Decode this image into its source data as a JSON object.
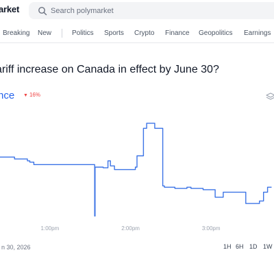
{
  "header": {
    "logo_text": "arket",
    "search": {
      "placeholder": "Search polymarket",
      "value": ""
    }
  },
  "nav": {
    "items": [
      "Breaking",
      "New",
      "Politics",
      "Sports",
      "Crypto",
      "Finance",
      "Geopolitics",
      "Earnings"
    ]
  },
  "market": {
    "title": "ariff increase on Canada in effect by June 30?",
    "outcome_label": "nce",
    "change_text": "16%",
    "change_color": "#ef4444",
    "accent_color": "#2563eb"
  },
  "chart_data": {
    "type": "line",
    "x_ticks": [
      "1:00pm",
      "2:00pm",
      "3:00pm"
    ],
    "ylim": [
      0,
      100
    ],
    "grid": false,
    "series": [
      {
        "color": "#3b73e6",
        "x": [
          12.38,
          12.45,
          12.53,
          12.56,
          12.61,
          12.66,
          12.7,
          12.72,
          12.75,
          12.8,
          12.85,
          12.9,
          12.95,
          13.0,
          13.1,
          13.2,
          13.3,
          13.4,
          13.5,
          13.55,
          13.555,
          13.56,
          13.58,
          13.6,
          13.63,
          13.66,
          13.7,
          13.72,
          13.75,
          13.8,
          13.85,
          13.9,
          13.95,
          14.0,
          14.02,
          14.04,
          14.06,
          14.08,
          14.1,
          14.13,
          14.16,
          14.2,
          14.25,
          14.3,
          14.35,
          14.4,
          14.42,
          14.45,
          14.5,
          14.55,
          14.6,
          14.65,
          14.7,
          14.75,
          14.8,
          14.85,
          14.9,
          14.95,
          15.0,
          15.05,
          15.1,
          15.15,
          15.2,
          15.25,
          15.3,
          15.35,
          15.4,
          15.43,
          15.46,
          15.5,
          15.55,
          15.6,
          15.65,
          15.7,
          15.75
        ],
        "y": [
          55,
          55,
          55,
          53.5,
          53.5,
          53.5,
          53.5,
          52,
          51,
          49,
          49,
          49,
          49,
          49,
          49,
          49,
          49,
          49,
          49,
          49,
          8,
          47,
          47,
          47,
          47,
          46.5,
          46.5,
          52,
          48,
          45,
          45,
          45,
          45,
          45,
          45,
          45,
          47,
          56,
          56,
          56,
          78,
          82,
          82,
          78,
          78,
          32,
          31,
          31,
          31,
          30,
          30,
          30,
          31,
          30,
          30,
          30,
          29,
          29,
          29,
          23,
          23,
          27,
          27,
          27,
          27,
          27,
          27,
          18,
          18,
          18,
          18,
          20,
          27,
          31,
          31
        ]
      }
    ]
  },
  "footer": {
    "date_label": "n 30, 2026",
    "ranges": [
      "1H",
      "6H",
      "1D",
      "1W"
    ]
  }
}
